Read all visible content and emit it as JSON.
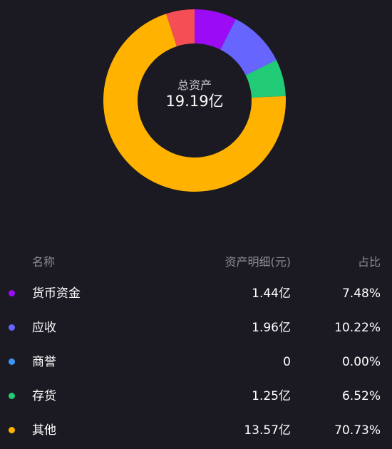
{
  "center": {
    "title": "总资产",
    "value": "19.19亿"
  },
  "table": {
    "headers": {
      "name": "名称",
      "value": "资产明细(元)",
      "pct": "占比"
    },
    "rows": [
      {
        "name": "货币资金",
        "value": "1.44亿",
        "pct": "7.48%",
        "color": "#9b0cf5"
      },
      {
        "name": "应收",
        "value": "1.96亿",
        "pct": "10.22%",
        "color": "#6666ff"
      },
      {
        "name": "商誉",
        "value": "0",
        "pct": "0.00%",
        "color": "#3a97f5"
      },
      {
        "name": "存货",
        "value": "1.25亿",
        "pct": "6.52%",
        "color": "#22cc77"
      },
      {
        "name": "其他",
        "value": "13.57亿",
        "pct": "70.73%",
        "color": "#ffb300"
      }
    ]
  },
  "chart_data": {
    "type": "pie",
    "categories": [
      "货币资金",
      "应收",
      "商誉",
      "存货",
      "其他",
      ""
    ],
    "values": [
      7.48,
      10.22,
      0.0,
      6.52,
      70.73,
      5.05
    ],
    "colors": [
      "#9b0cf5",
      "#6666ff",
      "#3a97f5",
      "#22cc77",
      "#ffb300",
      "#f64e55"
    ],
    "start_angle_deg": 0,
    "donut": true
  }
}
